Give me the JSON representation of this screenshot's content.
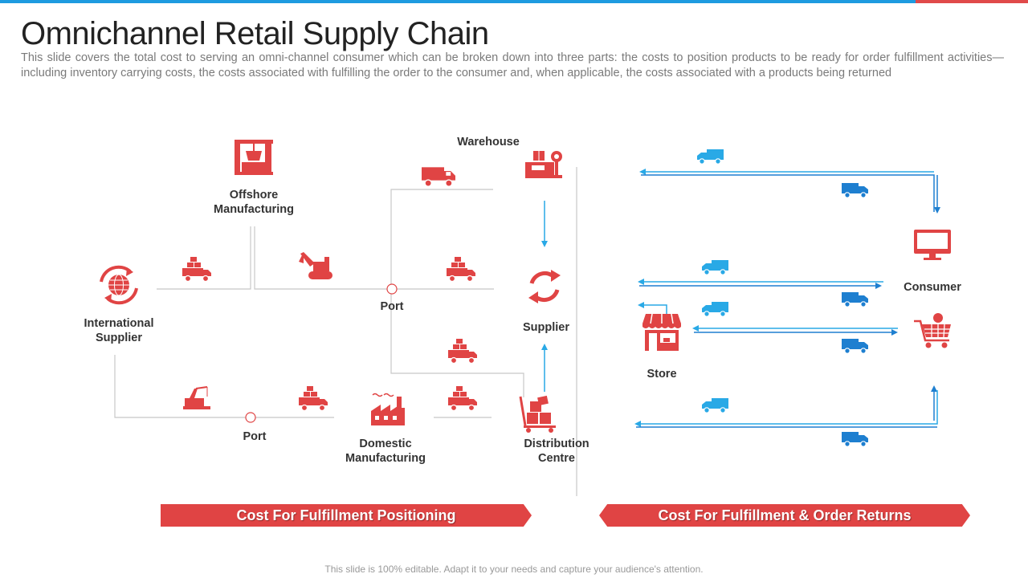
{
  "header": {
    "title": "Omnichannel Retail Supply Chain",
    "subtitle": "This slide covers the total cost to serving an omni-channel consumer which can be broken down into three parts: the costs to position products to be ready for order fulfillment activities—including inventory carrying costs, the costs associated with fulfilling the order to the consumer and, when applicable, the costs associated with a products being returned"
  },
  "nodes": {
    "offshore": "Offshore\nManufacturing",
    "international": "International\nSupplier",
    "port_top": "Port",
    "port_bottom": "Port",
    "warehouse": "Warehouse",
    "supplier": "Supplier",
    "domestic": "Domestic\nManufacturing",
    "distribution": "Distribution\nCentre",
    "store": "Store",
    "consumer": "Consumer"
  },
  "banners": {
    "left": "Cost For Fulfillment Positioning",
    "right": "Cost For Fulfillment & Order Returns"
  },
  "footer": "This slide is 100% editable. Adapt it to your needs and capture your audience's attention.",
  "colors": {
    "red": "#e04444",
    "blue": "#1e7fd0",
    "light_blue": "#29a9e6",
    "line": "#cccccc"
  },
  "icons": {
    "offshore": "factory-crane-icon",
    "international": "globe-refresh-icon",
    "warehouse": "scale-box-icon",
    "supplier": "refresh-cycle-icon",
    "domestic": "factory-icon",
    "distribution": "hand-truck-boxes-icon",
    "store": "storefront-icon",
    "consumer_computer": "monitor-icon",
    "consumer_cart": "shopping-cart-icon",
    "truck": "truck-icon",
    "excavator": "excavator-icon",
    "crane": "crane-icon"
  }
}
